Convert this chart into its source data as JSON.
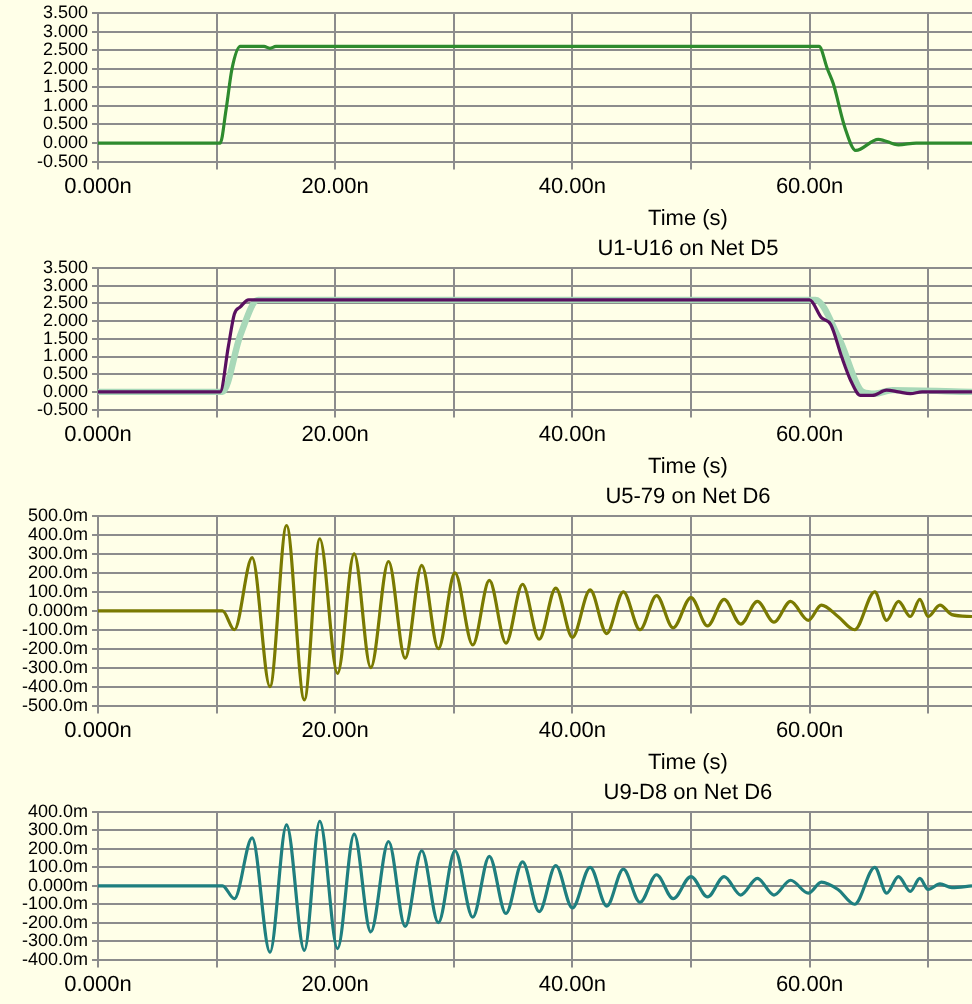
{
  "chart_data": [
    {
      "type": "line",
      "xlabel": "Time (s)",
      "xlim": [
        0,
        73.7
      ],
      "xticks": [
        {
          "value": 0,
          "label": "0.000n"
        },
        {
          "value": 10,
          "label": null
        },
        {
          "value": 20,
          "label": "20.00n"
        },
        {
          "value": 30,
          "label": null
        },
        {
          "value": 40,
          "label": "40.00n"
        },
        {
          "value": 50,
          "label": null
        },
        {
          "value": 60,
          "label": "60.00n"
        },
        {
          "value": 70,
          "label": null
        }
      ],
      "ylim": [
        -0.5,
        3.5
      ],
      "yticks": [
        {
          "value": 3.5,
          "label": "3.500"
        },
        {
          "value": 3,
          "label": "3.000"
        },
        {
          "value": 2.5,
          "label": "2.500"
        },
        {
          "value": 2,
          "label": "2.000"
        },
        {
          "value": 1.5,
          "label": "1.500"
        },
        {
          "value": 1,
          "label": "1.000"
        },
        {
          "value": 0.5,
          "label": "0.500"
        },
        {
          "value": 0,
          "label": "0.000"
        },
        {
          "value": -0.5,
          "label": "-0.500"
        }
      ],
      "grid": true,
      "series": [
        {
          "color": "#2e8b2e",
          "x": [
            0,
            10.3,
            10.8,
            11.3,
            12.0,
            14.0,
            14.5,
            15.0,
            60.8,
            61.5,
            62.0,
            63.0,
            63.9,
            65.8,
            67.5,
            69,
            73.7
          ],
          "values": [
            0,
            0,
            0.9,
            2.0,
            2.6,
            2.6,
            2.55,
            2.6,
            2.6,
            2.0,
            1.6,
            0.4,
            -0.2,
            0.1,
            -0.05,
            0,
            0
          ]
        }
      ]
    },
    {
      "type": "line",
      "title": "U1-U16 on Net D5",
      "xlabel": "Time (s)",
      "xlim": [
        0,
        73.7
      ],
      "xticks": [
        {
          "value": 0,
          "label": "0.000n"
        },
        {
          "value": 10,
          "label": null
        },
        {
          "value": 20,
          "label": "20.00n"
        },
        {
          "value": 30,
          "label": null
        },
        {
          "value": 40,
          "label": "40.00n"
        },
        {
          "value": 50,
          "label": null
        },
        {
          "value": 60,
          "label": "60.00n"
        },
        {
          "value": 70,
          "label": null
        }
      ],
      "ylim": [
        -0.5,
        3.5
      ],
      "yticks": [
        {
          "value": 3.5,
          "label": "3.500"
        },
        {
          "value": 3,
          "label": "3.000"
        },
        {
          "value": 2.5,
          "label": "2.500"
        },
        {
          "value": 2,
          "label": "2.000"
        },
        {
          "value": 1.5,
          "label": "1.500"
        },
        {
          "value": 1,
          "label": "1.000"
        },
        {
          "value": 0.5,
          "label": "0.500"
        },
        {
          "value": 0,
          "label": "0.000"
        },
        {
          "value": -0.5,
          "label": "-0.500"
        }
      ],
      "grid": true,
      "series": [
        {
          "color": "#a8d8b8",
          "x": [
            0,
            10.5,
            12.0,
            13.5,
            60.5,
            62.5,
            64.5,
            65.5,
            67,
            73.7
          ],
          "values": [
            0,
            0,
            1.6,
            2.6,
            2.6,
            1.5,
            0,
            -0.05,
            0.05,
            0
          ]
        },
        {
          "color": "#5a1060",
          "x": [
            0,
            10.3,
            11.0,
            11.5,
            12.0,
            12.7,
            60.0,
            61.0,
            61.8,
            62.7,
            63.5,
            64.3,
            65.3,
            66.5,
            67.5,
            68.5,
            69.5,
            73.7
          ],
          "values": [
            0,
            0,
            1.3,
            2.2,
            2.4,
            2.6,
            2.6,
            2.1,
            1.9,
            1.0,
            0.3,
            -0.1,
            -0.1,
            0.05,
            0,
            -0.05,
            0,
            0
          ]
        }
      ]
    },
    {
      "type": "line",
      "title": "U5-79 on Net D6",
      "xlabel": "Time (s)",
      "xlim": [
        0,
        73.7
      ],
      "xticks": [
        {
          "value": 0,
          "label": "0.000n"
        },
        {
          "value": 10,
          "label": null
        },
        {
          "value": 20,
          "label": "20.00n"
        },
        {
          "value": 30,
          "label": null
        },
        {
          "value": 40,
          "label": "40.00n"
        },
        {
          "value": 50,
          "label": null
        },
        {
          "value": 60,
          "label": "60.00n"
        },
        {
          "value": 70,
          "label": null
        }
      ],
      "ylim": [
        -500,
        500
      ],
      "yticks": [
        {
          "value": 500,
          "label": "500.0m"
        },
        {
          "value": 400,
          "label": "400.0m"
        },
        {
          "value": 300,
          "label": "300.0m"
        },
        {
          "value": 200,
          "label": "200.0m"
        },
        {
          "value": 100,
          "label": "100.0m"
        },
        {
          "value": 0,
          "label": "0.000m"
        },
        {
          "value": -100,
          "label": "-100.0m"
        },
        {
          "value": -200,
          "label": "-200.0m"
        },
        {
          "value": -300,
          "label": "-300.0m"
        },
        {
          "value": -400,
          "label": "-400.0m"
        },
        {
          "value": -500,
          "label": "-500.0m"
        }
      ],
      "grid": true,
      "series": [
        {
          "color": "#7a7a00",
          "x": [
            0,
            10.5,
            11.5,
            13.0,
            14.5,
            15.9,
            17.4,
            18.7,
            20.2,
            21.6,
            23.0,
            24.5,
            25.9,
            27.3,
            28.7,
            30.1,
            31.6,
            33.0,
            34.4,
            35.8,
            37.2,
            38.6,
            40.0,
            41.5,
            42.9,
            44.3,
            45.7,
            47.1,
            48.5,
            50.0,
            51.4,
            52.8,
            54.2,
            55.6,
            57.0,
            58.4,
            59.9,
            61.0,
            62.4,
            63.8,
            65.5,
            66.5,
            67.5,
            68.5,
            69.3,
            70.0,
            71.0,
            72.0,
            73.7
          ],
          "values": [
            0,
            0,
            -100,
            280,
            -400,
            450,
            -470,
            380,
            -330,
            300,
            -300,
            260,
            -250,
            240,
            -200,
            200,
            -180,
            160,
            -170,
            140,
            -150,
            120,
            -140,
            110,
            -120,
            100,
            -100,
            80,
            -90,
            70,
            -80,
            60,
            -70,
            50,
            -60,
            50,
            -50,
            30,
            -30,
            -100,
            100,
            -50,
            50,
            -30,
            60,
            -30,
            30,
            -20,
            -30
          ]
        }
      ]
    },
    {
      "type": "line",
      "title": "U9-D8 on Net D6",
      "xlim": [
        0,
        73.7
      ],
      "xticks": [
        {
          "value": 0,
          "label": "0.000n"
        },
        {
          "value": 10,
          "label": null
        },
        {
          "value": 20,
          "label": "20.00n"
        },
        {
          "value": 30,
          "label": null
        },
        {
          "value": 40,
          "label": "40.00n"
        },
        {
          "value": 50,
          "label": null
        },
        {
          "value": 60,
          "label": "60.00n"
        },
        {
          "value": 70,
          "label": null
        }
      ],
      "ylim": [
        -400,
        400
      ],
      "yticks": [
        {
          "value": 400,
          "label": "400.0m"
        },
        {
          "value": 300,
          "label": "300.0m"
        },
        {
          "value": 200,
          "label": "200.0m"
        },
        {
          "value": 100,
          "label": "100.0m"
        },
        {
          "value": 0,
          "label": "0.000m"
        },
        {
          "value": -100,
          "label": "-100.0m"
        },
        {
          "value": -200,
          "label": "-200.0m"
        },
        {
          "value": -300,
          "label": "-300.0m"
        },
        {
          "value": -400,
          "label": "-400.0m"
        }
      ],
      "grid": true,
      "series": [
        {
          "color": "#1f7f7f",
          "x": [
            0,
            10.5,
            11.5,
            13.0,
            14.5,
            15.9,
            17.4,
            18.7,
            20.2,
            21.6,
            23.0,
            24.5,
            25.9,
            27.3,
            28.7,
            30.1,
            31.6,
            33.0,
            34.4,
            35.8,
            37.2,
            38.6,
            40.0,
            41.5,
            42.9,
            44.3,
            45.7,
            47.1,
            48.5,
            50.0,
            51.4,
            52.8,
            54.2,
            55.6,
            57.0,
            58.4,
            59.9,
            61.0,
            62.4,
            63.8,
            65.5,
            66.5,
            67.5,
            68.5,
            69.3,
            70.0,
            71.0,
            72.0,
            73.7
          ],
          "values": [
            0,
            0,
            -70,
            260,
            -360,
            330,
            -350,
            350,
            -340,
            280,
            -250,
            240,
            -220,
            190,
            -200,
            190,
            -170,
            160,
            -150,
            130,
            -140,
            110,
            -120,
            100,
            -110,
            90,
            -90,
            60,
            -70,
            50,
            -60,
            50,
            -50,
            40,
            -50,
            30,
            -40,
            20,
            -20,
            -100,
            100,
            -40,
            50,
            -30,
            40,
            -20,
            10,
            -10,
            0
          ]
        }
      ]
    }
  ]
}
